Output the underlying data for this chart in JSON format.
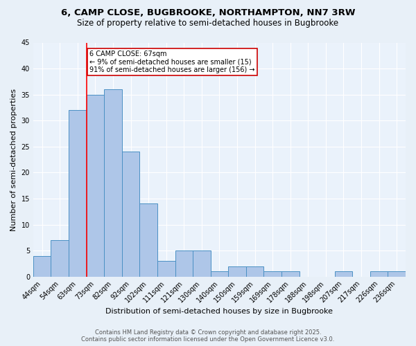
{
  "title": "6, CAMP CLOSE, BUGBROOKE, NORTHAMPTON, NN7 3RW",
  "subtitle": "Size of property relative to semi-detached houses in Bugbrooke",
  "xlabel": "Distribution of semi-detached houses by size in Bugbrooke",
  "ylabel": "Number of semi-detached properties",
  "categories": [
    "44sqm",
    "54sqm",
    "63sqm",
    "73sqm",
    "82sqm",
    "92sqm",
    "102sqm",
    "111sqm",
    "121sqm",
    "130sqm",
    "140sqm",
    "150sqm",
    "159sqm",
    "169sqm",
    "178sqm",
    "188sqm",
    "198sqm",
    "207sqm",
    "217sqm",
    "226sqm",
    "236sqm"
  ],
  "values": [
    4,
    7,
    32,
    35,
    36,
    24,
    14,
    3,
    5,
    5,
    1,
    2,
    2,
    1,
    1,
    0,
    0,
    1,
    0,
    1,
    1
  ],
  "bar_color": "#aec6e8",
  "bar_edge_color": "#4a90c4",
  "red_line_x": 2.5,
  "annotation_line1": "6 CAMP CLOSE: 67sqm",
  "annotation_line2": "← 9% of semi-detached houses are smaller (15)",
  "annotation_line3": "91% of semi-detached houses are larger (156) →",
  "annotation_box_color": "#ffffff",
  "annotation_box_edge": "#cc0000",
  "ylim": [
    0,
    45
  ],
  "yticks": [
    0,
    5,
    10,
    15,
    20,
    25,
    30,
    35,
    40,
    45
  ],
  "footer1": "Contains HM Land Registry data © Crown copyright and database right 2025.",
  "footer2": "Contains public sector information licensed under the Open Government Licence v3.0.",
  "bg_color": "#e8f0f8",
  "plot_bg_color": "#eaf2fb",
  "grid_color": "#ffffff",
  "title_fontsize": 9.5,
  "subtitle_fontsize": 8.5,
  "axis_label_fontsize": 8,
  "tick_fontsize": 7,
  "annotation_fontsize": 7,
  "footer_fontsize": 6
}
